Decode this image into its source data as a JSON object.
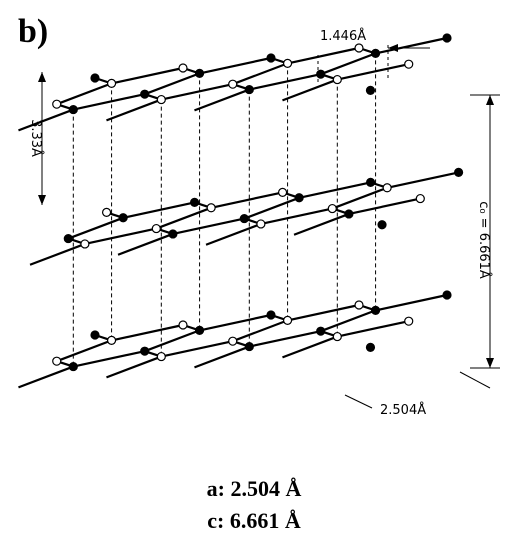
{
  "panel_label": "b)",
  "annotations": {
    "bond_length": "1.446Å",
    "interlayer": "3.33Å",
    "c_axis": "c₀ = 6.661Å",
    "a_axis": "2.504Å"
  },
  "caption": {
    "a": "a: 2.504 Å",
    "c": "c: 6.661 Å"
  }
}
